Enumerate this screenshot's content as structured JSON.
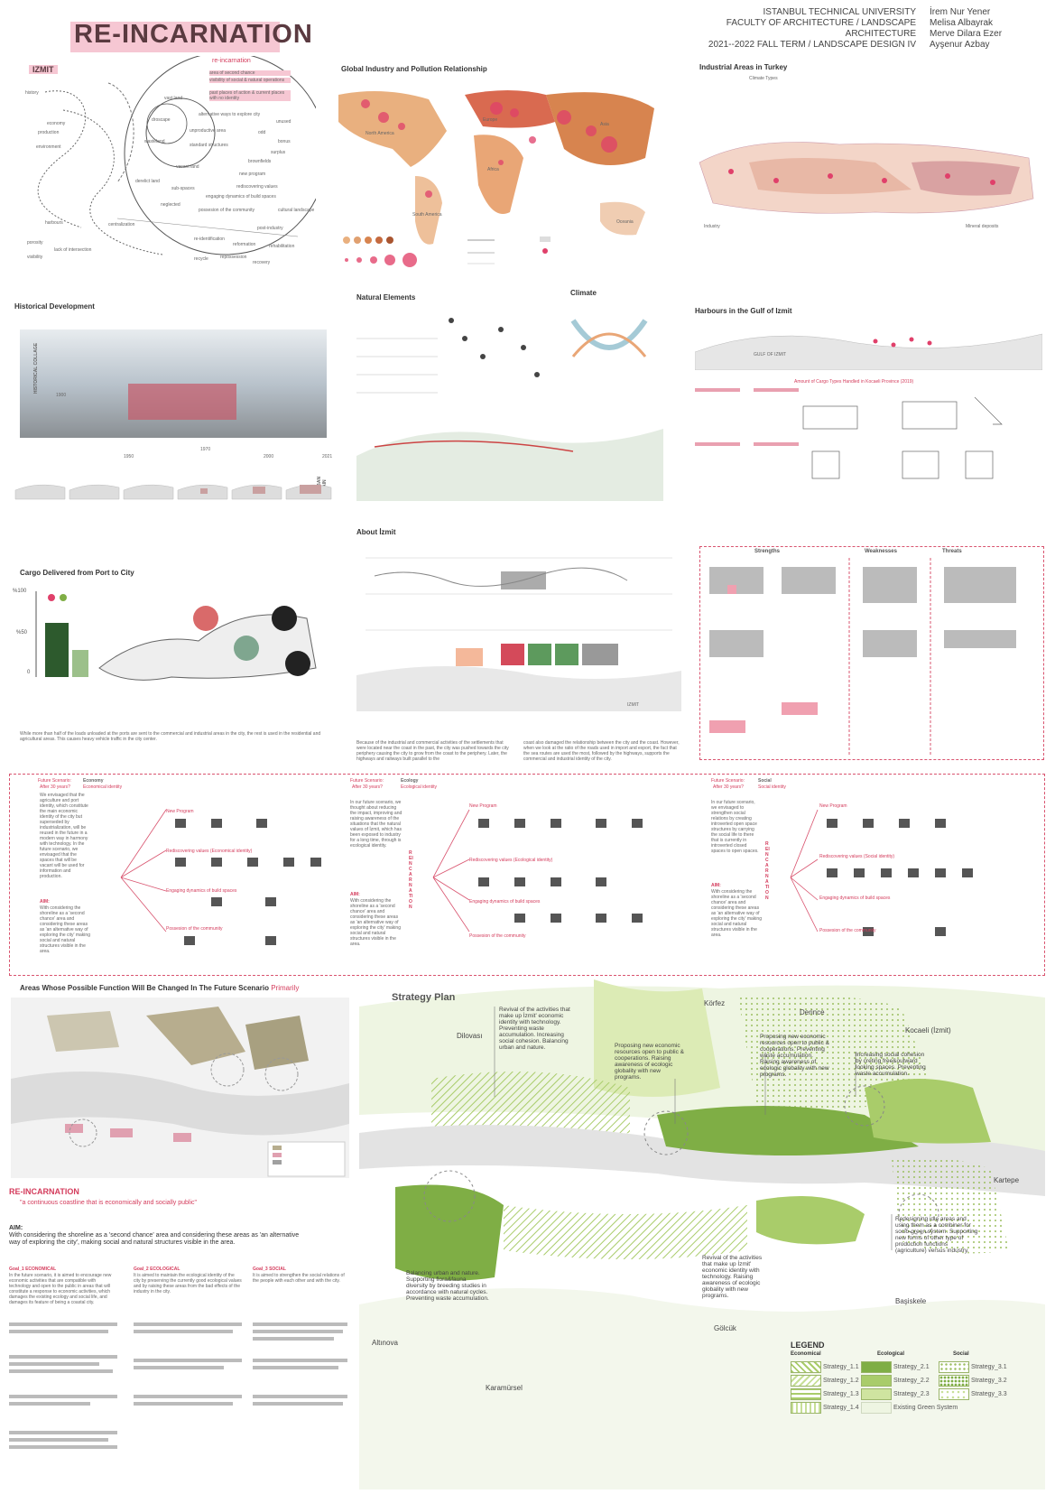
{
  "header": {
    "title": "RE-INCARNATION",
    "institution": [
      "ISTANBUL TECHNICAL UNIVERSITY",
      "FACULTY OF ARCHITECTURE / LANDSCAPE ARCHITECTURE",
      "2021--2022 FALL TERM / LANDSCAPE DESIGN IV"
    ],
    "authors": [
      "İrem Nur Yener",
      "Melisa Albayrak",
      "Merve Dilara Ezer",
      "Ayşenur Azbay"
    ]
  },
  "panels": {
    "izmit_diagram": {
      "title": "IZMIT",
      "center_label": "re-incarnation",
      "sub": [
        "area of second chance",
        "visibility of social & natural operations",
        "past places of action & current places with no identity"
      ],
      "words": [
        "alternative ways to explore city",
        "unproductive area",
        "standard structures",
        "vacant land",
        "derelict land",
        "sub-spaces",
        "neglected",
        "new program",
        "engaging dynamics of build spaces",
        "rediscovering values",
        "possesion of the community",
        "re-identification",
        "reformation",
        "rehabilitation",
        "repossession",
        "recycle",
        "recovery",
        "post-industry",
        "cultural landscape",
        "brownfields",
        "surplus",
        "unused",
        "odd",
        "bonus",
        "history",
        "economy",
        "production",
        "environment",
        "harbours",
        "centralization",
        "visibility",
        "lack of intersection",
        "porosity",
        "wasteland",
        "droscape",
        "vast land"
      ]
    },
    "global_industry": {
      "title": "Global Industry and Pollution Relationship",
      "regions": [
        "North America",
        "Europe",
        "Asia",
        "Africa",
        "South America",
        "Oceania"
      ]
    },
    "industrial_turkey": {
      "title": "Industrial Areas in Turkey",
      "legend_title": "Climate Types",
      "industry_label": "Industry",
      "mineral_label": "Mineral deposits"
    },
    "historical": {
      "title": "Historical Development",
      "side": "HISTORICAL COLLAGE",
      "years": [
        "1900",
        "1950",
        "1970",
        "2000",
        "2021"
      ],
      "side2": "URBAN STAIN"
    },
    "natural": {
      "title": "Natural Elements",
      "climate": "Climate"
    },
    "harbours": {
      "title": "Harbours in the Gulf of Izmit",
      "gulf": "GULF OF IZMIT",
      "table_title": "Amount of Cargo Types Handled in Kocaeli Province (2019)"
    },
    "cargo": {
      "title": "Cargo Delivered from Port to City",
      "y_labels": [
        "%100",
        "%50",
        "0"
      ],
      "note": "While more than half of the loads unloaded at the ports are sent to the commercial and industrial areas in the city, the rest is used in the residential and agricultural areas. This causes heavy vehicle traffic in the city center."
    },
    "about": {
      "title": "About İzmit",
      "izmit_label": "IZMIT",
      "note_left": "Because of the industrial and commercial activities of the settlements that were located near the coast in the past, the city was pushed towards the city periphery causing the city to grow from the coast to the periphery. Later, the highways and railways built parallel to the",
      "note_right": "coast also damaged the relationship between the city and the coast. However, when we look at the ratio of the roads used in import and export, the fact that the sea routes are used the most, followed by the highways, supports the commercial and industrial identity of the city."
    },
    "swot": {
      "headers": [
        "Strengths",
        "Weaknesses",
        "Threats"
      ]
    }
  },
  "scenarios": [
    {
      "label": "Future Scenario:",
      "topic": "Economy",
      "after": "After 30 years?",
      "subtitle": "Economical identity",
      "body": "We envisaged that the agriculture and port identity, which constitute the main economic identity of the city but superseded by industrialization, will be reused in the future in a modern way in harmony with technology. In the future scenario, we envisaged that the spaces that will be vacant will be used for information and production.",
      "aim_label": "AIM:",
      "aim": "With considering the shoreline as a 'second chance' area and considering these areas as 'an alternative way of exploring the city' making social and natural structures visible in the area.",
      "branches": [
        "New Program",
        "Rediscovering values (Economical identity)",
        "Engaging dynamics of build spaces",
        "Possesion of the community"
      ]
    },
    {
      "label": "Future Scenario:",
      "topic": "Ecology",
      "after": "After 30 years?",
      "subtitle": "Ecological identity",
      "body": "In our future scenario, we thought about reducing the impact, improving and raising awareness of the situations that the natural values of İzmit, which has been exposed to industry for a long time, through is ecological identity.",
      "aim_label": "AIM:",
      "aim": "With considering the shoreline as a 'second chance' area and considering these areas as 'an alternative way of exploring the city' making social and natural structures visible in the area.",
      "branches": [
        "New Program",
        "Rediscovering values (Ecological identity)",
        "Engaging dynamics of build spaces",
        "Possesion of the community"
      ]
    },
    {
      "label": "Future Scenario:",
      "topic": "Social",
      "after": "After 30 years?",
      "subtitle": "Social identity",
      "body": "In our future scenario, we envisaged to strengthen social relations by creating introverted open space structures by carrying the social life to there that is currently in introverted closed spaces to open spaces.",
      "aim_label": "AIM:",
      "aim": "With considering the shoreline as a 'second chance' area and considering these areas as 'an alternative way of exploring the city' making social and natural structures visible in the area.",
      "branches": [
        "New Program",
        "Rediscovering values (Social identity)",
        "Engaging dynamics of build spaces",
        "Possesion of the community"
      ]
    }
  ],
  "scenario_vertical": "REINCARNATION",
  "areas_change": {
    "title": "Areas Whose Possible Function Will Be Changed In The Future Scenario",
    "title_suffix": "Primarily"
  },
  "reincarnation_block": {
    "title": "RE-INCARNATION",
    "quote": "\"a continuous coastline that is economically and socially public\"",
    "aim_label": "AIM:",
    "aim": "With considering the shoreline as a 'second chance' area and considering these areas as 'an alternative way of exploring the city', making social and natural structures visible in the area.",
    "goals": [
      {
        "title": "Goal_1 ECONOMICAL",
        "text": "In the future scenario, it is aimed to encourage new economic activities that are compatible with technology and open to the public in areas that will constitute a response to economic activities, which damages the existing ecology and social life, and damages its feature of being a coastal city."
      },
      {
        "title": "Goal_2 ECOLOGICAL",
        "text": "It is aimed to maintain the ecological identity of the city by preserving the currently good ecological values and by raising these areas from the bad effects of the industry in the city."
      },
      {
        "title": "Goal_3 SOCIAL",
        "text": "It is aimed to strengthen the social relations of the people with each other and with the city."
      }
    ]
  },
  "strategy": {
    "title": "Strategy Plan",
    "places": [
      "Dilovası",
      "Körfez",
      "Derince",
      "Kocaeli (İzmit)",
      "Kartepe",
      "Başiskele",
      "Gölcük",
      "Karamürsel",
      "Altınova"
    ],
    "notes": [
      "Revival of the activities that make up İzmit' economic identity with technology. Preventing waste accumulation. Increasing social cohesion. Balancing urban and nature.",
      "Proposing new economic resources open to public & cooperations. Raising awareness of ecologic globality with new programs.",
      "Proposing new economic resources open to public & cooperations. Preventing waste accumulation. Raising awareness of ecologic globality with new programs.",
      "Increasing social cohesion by creting free&outward looking spaces. Preventing waste accumulation.",
      "Redesigning idle areas and using them as a combiner for socio-green system. Supporting new forms of other type of production functions (agriculture) versus industry.",
      "Revival of the activities that make up İzmit' economic identity with technology. Raising awareness of ecologic globality with new programs.",
      "Balancing urban and nature. Supporting flora&fauna diversity by breeding studies in accordance with natural cycles. Preventing waste accumulation."
    ]
  },
  "legend": {
    "title": "LEGEND",
    "groups": [
      "Economical",
      "Ecological",
      "Social"
    ],
    "economical": [
      "Strategy_1.1",
      "Strategy_1.2",
      "Strategy_1.3",
      "Strategy_1.4"
    ],
    "ecological": [
      "Strategy_2.1",
      "Strategy_2.2",
      "Strategy_2.3",
      "Existing Green System"
    ],
    "social": [
      "Strategy_3.1",
      "Strategy_3.2",
      "Strategy_3.3"
    ]
  },
  "colors": {
    "accent_pink": "#f6c7d3",
    "accent_red": "#d43c5c",
    "green_light": "#dcebb5",
    "green_mid": "#a9cc6a",
    "green_dark": "#7fae45"
  }
}
